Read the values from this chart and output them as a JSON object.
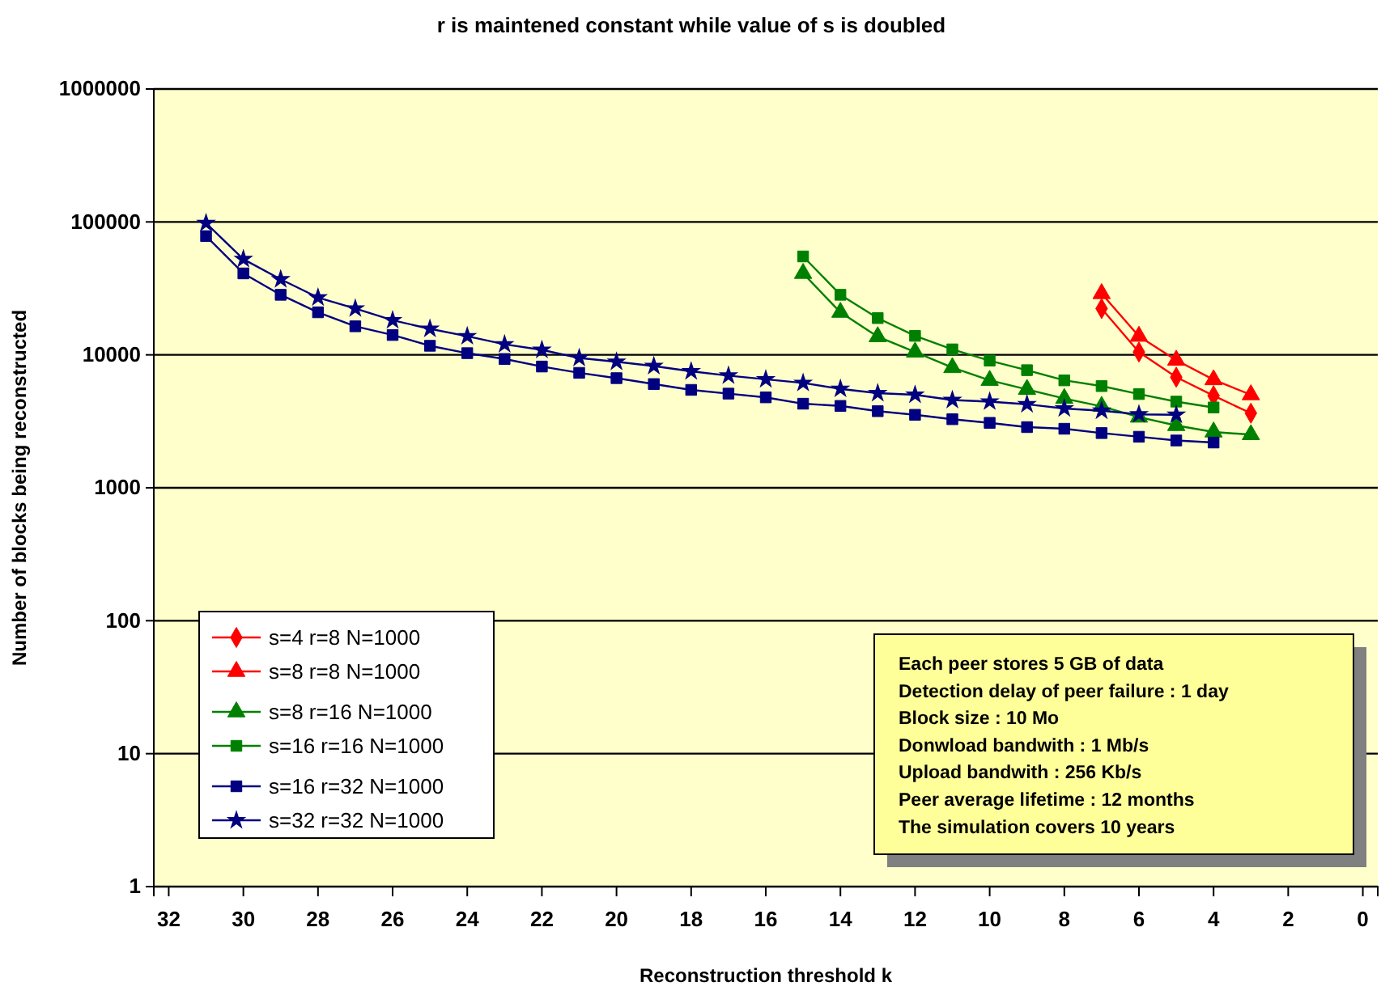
{
  "chart_data": {
    "type": "line",
    "title": "r is maintened constant while value of s is doubled",
    "xlabel": "Reconstruction threshold  k",
    "ylabel": "Number of blocks being reconstructed",
    "log": "y",
    "grid": "y",
    "legend": "bottom left",
    "line_style": "solid",
    "xlim": [
      32.4,
      -0.4
    ],
    "xticks": [
      32,
      30,
      28,
      26,
      24,
      22,
      20,
      18,
      16,
      14,
      12,
      10,
      8,
      6,
      4,
      2,
      0
    ],
    "ylim": [
      1,
      1000000
    ],
    "yticks": [
      1,
      10,
      100,
      1000,
      10000,
      100000,
      1000000
    ],
    "series": [
      {
        "name": "s=4 r=8 N=1000",
        "color": "#ff0000",
        "marker": "diamond",
        "x": [
          7,
          6,
          5,
          4,
          3
        ],
        "values": [
          22300,
          10500,
          6790,
          4930,
          3640
        ]
      },
      {
        "name": "s=8 r=8 N=1000",
        "color": "#ff0000",
        "marker": "triangle",
        "x": [
          7,
          6,
          5,
          4,
          3
        ],
        "values": [
          28900,
          13800,
          9120,
          6500,
          5010
        ]
      },
      {
        "name": "s=8   r=16 N=1000",
        "color": "#008000",
        "marker": "triangle",
        "x": [
          15,
          14,
          13,
          12,
          11,
          10,
          9,
          8,
          7,
          6,
          5,
          4,
          3
        ],
        "values": [
          41000,
          20900,
          13700,
          10500,
          8020,
          6430,
          5500,
          4700,
          4100,
          3400,
          2940,
          2630,
          2510
        ]
      },
      {
        "name": "s=16 r=16 N=1000",
        "color": "#008000",
        "marker": "square",
        "x": [
          15,
          14,
          13,
          12,
          11,
          10,
          9,
          8,
          7,
          6,
          5,
          4
        ],
        "values": [
          55000,
          28300,
          18900,
          13900,
          11000,
          9050,
          7670,
          6430,
          5820,
          5070,
          4450,
          4020
        ]
      },
      {
        "name": "s=16 r=32 N=1000",
        "color": "#000080",
        "marker": "square",
        "x": [
          31,
          30,
          29,
          28,
          27,
          26,
          25,
          24,
          23,
          22,
          21,
          20,
          19,
          18,
          17,
          16,
          15,
          14,
          13,
          12,
          11,
          10,
          9,
          8,
          7,
          6,
          5,
          4
        ],
        "values": [
          78200,
          41000,
          28300,
          20900,
          16400,
          14100,
          11700,
          10300,
          9310,
          8170,
          7320,
          6680,
          6030,
          5450,
          5110,
          4790,
          4290,
          4130,
          3770,
          3540,
          3280,
          3080,
          2860,
          2780,
          2580,
          2420,
          2270,
          2190
        ]
      },
      {
        "name": "s=32 r=32 N=1000",
        "color": "#000080",
        "marker": "star",
        "x": [
          31,
          30,
          29,
          28,
          27,
          26,
          25,
          24,
          23,
          22,
          21,
          20,
          19,
          18,
          17,
          16,
          15,
          14,
          13,
          12,
          11,
          10,
          9,
          8,
          7,
          6,
          5
        ],
        "values": [
          98000,
          52500,
          37000,
          27000,
          22300,
          18200,
          15700,
          13800,
          12000,
          10900,
          9470,
          8870,
          8240,
          7520,
          6980,
          6550,
          6150,
          5550,
          5150,
          5010,
          4570,
          4450,
          4250,
          3950,
          3800,
          3570,
          3540
        ]
      }
    ],
    "annotations": [
      "Each peer stores 5 GB of data",
      "Detection delay of peer failure : 1 day",
      "Block size : 10 Mo",
      "Donwload bandwith : 1 Mb/s",
      "Upload bandwith : 256 Kb/s",
      "Peer average lifetime : 12 months",
      "The simulation covers 10 years"
    ]
  }
}
